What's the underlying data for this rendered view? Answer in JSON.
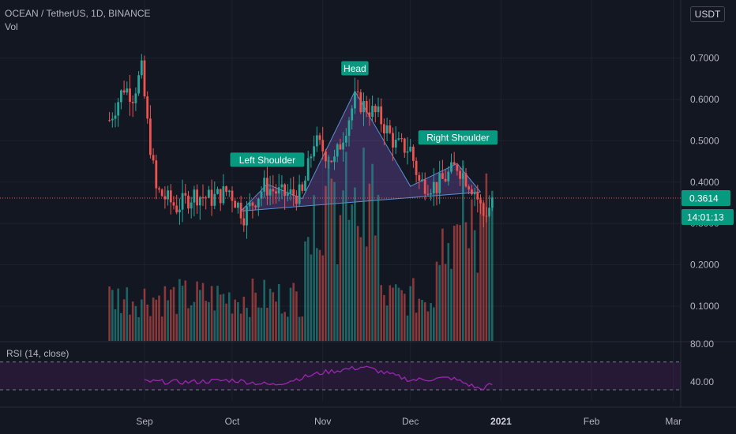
{
  "header": {
    "symbol": "OCEAN / TetherUS, 1D, BINANCE",
    "volume_indicator": "Vol",
    "currency": "USDT"
  },
  "rsi_panel": {
    "label": "RSI (14, close)",
    "axis_ticks": [
      "80.00",
      "40.00"
    ]
  },
  "price_badge": "0.3614",
  "countdown_badge": "14:01:13",
  "colors": {
    "background": "#131722",
    "up": "#26a69a",
    "down": "#ef5350",
    "pattern_fill": "#7e57c2",
    "label_bg": "#089981",
    "rsi_line": "#9c27b0"
  },
  "chart_data": [
    {
      "type": "candlestick",
      "pair": "OCEAN / TetherUS",
      "interval": "1D",
      "exchange": "BINANCE",
      "y_axis": {
        "ticks": [
          0.1,
          0.2,
          0.3,
          0.4,
          0.5,
          0.6,
          0.7
        ],
        "tick_labels": [
          "0.1000",
          "0.2000",
          "0.3000",
          "0.4000",
          "0.5000",
          "0.6000",
          "0.7000"
        ],
        "range": [
          0.0,
          0.8
        ]
      },
      "x_axis": {
        "tick_labels": [
          "Sep",
          "Oct",
          "Nov",
          "Dec",
          "2021",
          "Feb",
          "Mar"
        ]
      },
      "last_price": 0.3614,
      "pattern": {
        "name": "Head and Shoulders",
        "labels": [
          "Left Shoulder",
          "Head",
          "Right Shoulder"
        ],
        "points": [
          {
            "date": "2020-10-04",
            "price": 0.33
          },
          {
            "date": "2020-10-13",
            "price": 0.395
          },
          {
            "date": "2020-10-25",
            "price": 0.36
          },
          {
            "date": "2020-11-12",
            "price": 0.62
          },
          {
            "date": "2020-12-01",
            "price": 0.39
          },
          {
            "date": "2020-12-17",
            "price": 0.445
          },
          {
            "date": "2020-12-25",
            "price": 0.376
          }
        ]
      },
      "anchors": [
        {
          "date": "2020-08-20",
          "price": 0.55
        },
        {
          "date": "2020-08-25",
          "price": 0.63
        },
        {
          "date": "2020-08-28",
          "price": 0.61
        },
        {
          "date": "2020-08-31",
          "price": 0.67
        },
        {
          "date": "2020-09-02",
          "price": 0.54
        },
        {
          "date": "2020-09-05",
          "price": 0.38
        },
        {
          "date": "2020-09-12",
          "price": 0.34
        },
        {
          "date": "2020-09-18",
          "price": 0.37
        },
        {
          "date": "2020-09-24",
          "price": 0.36
        },
        {
          "date": "2020-09-30",
          "price": 0.38
        },
        {
          "date": "2020-10-05",
          "price": 0.32
        },
        {
          "date": "2020-10-12",
          "price": 0.39
        },
        {
          "date": "2020-10-18",
          "price": 0.37
        },
        {
          "date": "2020-10-25",
          "price": 0.37
        },
        {
          "date": "2020-10-29",
          "price": 0.5
        },
        {
          "date": "2020-11-05",
          "price": 0.45
        },
        {
          "date": "2020-11-12",
          "price": 0.6
        },
        {
          "date": "2020-11-20",
          "price": 0.56
        },
        {
          "date": "2020-11-26",
          "price": 0.49
        },
        {
          "date": "2020-12-01",
          "price": 0.48
        },
        {
          "date": "2020-12-04",
          "price": 0.4
        },
        {
          "date": "2020-12-10",
          "price": 0.39
        },
        {
          "date": "2020-12-17",
          "price": 0.44
        },
        {
          "date": "2020-12-23",
          "price": 0.38
        },
        {
          "date": "2020-12-26",
          "price": 0.32
        },
        {
          "date": "2020-12-29",
          "price": 0.35
        }
      ]
    },
    {
      "type": "bar",
      "name": "Vol",
      "note": "daily volume bars colored by candle direction, spikes in early November and late December"
    },
    {
      "type": "line",
      "name": "RSI (14, close)",
      "y_axis": {
        "tick_labels": [
          "80.00",
          "40.00"
        ],
        "band": [
          30,
          70
        ]
      },
      "x": [
        "2020-09-01",
        "2020-09-15",
        "2020-10-01",
        "2020-10-15",
        "2020-11-01",
        "2020-11-15",
        "2020-12-01",
        "2020-12-15",
        "2020-12-25",
        "2020-12-29"
      ],
      "values": [
        42,
        41,
        44,
        37,
        55,
        63,
        44,
        47,
        31,
        38
      ]
    }
  ]
}
